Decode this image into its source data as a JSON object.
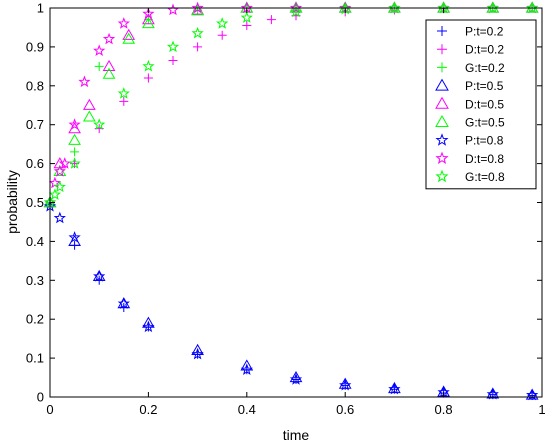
{
  "chart_data": {
    "type": "scatter",
    "title": "",
    "xlabel": "time",
    "ylabel": "probability",
    "xlim": [
      0,
      1
    ],
    "ylim": [
      0,
      1
    ],
    "xticks": [
      "0",
      "0.2",
      "0.4",
      "0.6",
      "0.8",
      "1"
    ],
    "yticks": [
      "0",
      "0.1",
      "0.2",
      "0.3",
      "0.4",
      "0.5",
      "0.6",
      "0.7",
      "0.8",
      "0.9",
      "1"
    ],
    "grid": false,
    "legend_position": "top-right",
    "series": [
      {
        "name": "P:t=0.2",
        "marker": "plus",
        "color": "#0000ff",
        "x": [
          0,
          0.05,
          0.1,
          0.15,
          0.2,
          0.3,
          0.4,
          0.5,
          0.6,
          0.7,
          0.8,
          0.9,
          0.98
        ],
        "y": [
          0.5,
          0.39,
          0.3,
          0.23,
          0.18,
          0.11,
          0.07,
          0.045,
          0.03,
          0.02,
          0.01,
          0.006,
          0.004
        ]
      },
      {
        "name": "D:t=0.2",
        "marker": "plus",
        "color": "#ff00ff",
        "x": [
          0,
          0.05,
          0.1,
          0.15,
          0.2,
          0.25,
          0.3,
          0.35,
          0.4,
          0.45,
          0.5,
          0.6,
          0.7,
          0.8,
          0.9,
          0.98
        ],
        "y": [
          0.5,
          0.6,
          0.69,
          0.76,
          0.82,
          0.865,
          0.9,
          0.93,
          0.955,
          0.97,
          0.98,
          0.99,
          0.995,
          0.998,
          1.0,
          1.0
        ]
      },
      {
        "name": "G:t=0.2",
        "marker": "plus",
        "color": "#00ff00",
        "x": [
          0,
          0.05,
          0.1,
          0.2,
          0.3,
          0.4,
          0.5,
          0.6,
          0.7,
          0.8,
          0.9,
          0.98
        ],
        "y": [
          0.5,
          0.63,
          0.85,
          0.97,
          0.995,
          1.0,
          1.0,
          1.0,
          1.0,
          1.0,
          1.0,
          1.0
        ]
      },
      {
        "name": "P:t=0.5",
        "marker": "triangle",
        "color": "#0000ff",
        "x": [
          0,
          0.05,
          0.1,
          0.15,
          0.2,
          0.3,
          0.4,
          0.5,
          0.6,
          0.7,
          0.8,
          0.9,
          0.98
        ],
        "y": [
          0.5,
          0.4,
          0.31,
          0.24,
          0.19,
          0.12,
          0.08,
          0.05,
          0.033,
          0.022,
          0.013,
          0.008,
          0.005
        ]
      },
      {
        "name": "D:t=0.5",
        "marker": "triangle",
        "color": "#ff00ff",
        "x": [
          0,
          0.02,
          0.05,
          0.08,
          0.12,
          0.16,
          0.2,
          0.3,
          0.4,
          0.5,
          0.6,
          0.7,
          0.8,
          0.9,
          0.98
        ],
        "y": [
          0.5,
          0.6,
          0.69,
          0.75,
          0.85,
          0.93,
          0.97,
          0.995,
          1.0,
          1.0,
          1.0,
          1.0,
          1.0,
          1.0,
          1.0
        ]
      },
      {
        "name": "G:t=0.5",
        "marker": "triangle",
        "color": "#00ff00",
        "x": [
          0,
          0.02,
          0.05,
          0.08,
          0.12,
          0.16,
          0.2,
          0.3,
          0.4,
          0.5,
          0.6,
          0.7,
          0.8,
          0.9,
          0.98
        ],
        "y": [
          0.5,
          0.58,
          0.66,
          0.72,
          0.83,
          0.92,
          0.96,
          0.993,
          1.0,
          1.0,
          1.0,
          1.0,
          1.0,
          1.0,
          1.0
        ]
      },
      {
        "name": "P:t=0.8",
        "marker": "pentagram",
        "color": "#0000ff",
        "x": [
          0,
          0.02,
          0.05,
          0.1,
          0.15,
          0.2,
          0.3,
          0.4,
          0.5,
          0.6,
          0.7,
          0.8,
          0.9,
          0.98
        ],
        "y": [
          0.49,
          0.46,
          0.41,
          0.31,
          0.24,
          0.18,
          0.11,
          0.07,
          0.045,
          0.03,
          0.02,
          0.012,
          0.007,
          0.005
        ]
      },
      {
        "name": "D:t=0.8",
        "marker": "pentagram",
        "color": "#ff00ff",
        "x": [
          0,
          0.01,
          0.02,
          0.03,
          0.05,
          0.07,
          0.1,
          0.12,
          0.15,
          0.2,
          0.25,
          0.3,
          0.4,
          0.5,
          0.6,
          0.7,
          0.8,
          0.9,
          0.98
        ],
        "y": [
          0.5,
          0.55,
          0.58,
          0.6,
          0.7,
          0.81,
          0.89,
          0.92,
          0.96,
          0.985,
          0.995,
          1.0,
          1.0,
          1.0,
          1.0,
          1.0,
          1.0,
          1.0,
          1.0
        ]
      },
      {
        "name": "G:t=0.8",
        "marker": "pentagram",
        "color": "#00ff00",
        "x": [
          0,
          0.01,
          0.02,
          0.05,
          0.1,
          0.15,
          0.2,
          0.25,
          0.3,
          0.35,
          0.4,
          0.5,
          0.6,
          0.7,
          0.8,
          0.9,
          0.98
        ],
        "y": [
          0.5,
          0.52,
          0.54,
          0.6,
          0.7,
          0.78,
          0.85,
          0.9,
          0.935,
          0.96,
          0.975,
          0.99,
          0.997,
          1.0,
          1.0,
          1.0,
          1.0
        ]
      }
    ]
  }
}
